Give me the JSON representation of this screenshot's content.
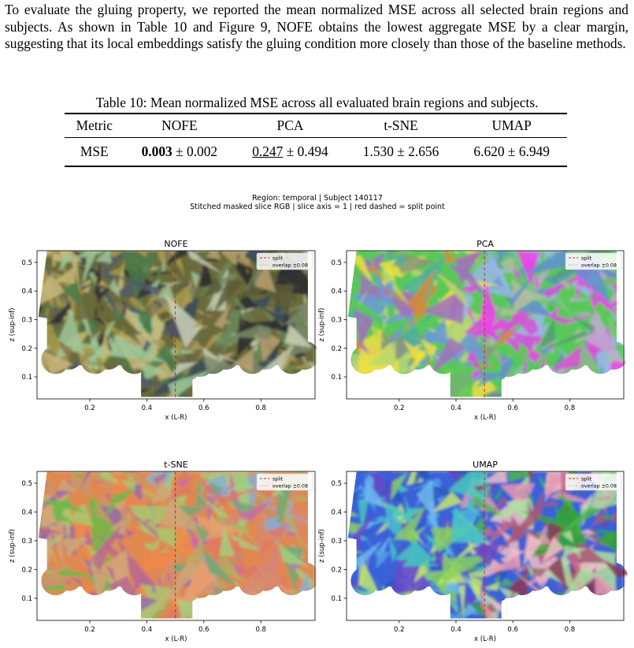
{
  "paragraph": "To evaluate the gluing property, we reported the mean normalized MSE across all selected brain regions and subjects. As shown in Table 10 and Figure 9, NOFE obtains the lowest aggregate MSE by a clear margin, suggesting that its local embeddings satisfy the gluing condition more closely than those of the baseline methods.",
  "table": {
    "caption": "Table 10: Mean normalized MSE across all evaluated brain regions and subjects.",
    "pm": "±",
    "header": [
      "Metric",
      "NOFE",
      "PCA",
      "t-SNE",
      "UMAP"
    ],
    "rows": [
      {
        "metric": "MSE",
        "cells": [
          {
            "mean": "0.003",
            "std": "0.002",
            "emphasis": "bold"
          },
          {
            "mean": "0.247",
            "std": "0.494",
            "emphasis": "underline"
          },
          {
            "mean": "1.530",
            "std": "2.656"
          },
          {
            "mean": "6.620",
            "std": "6.949"
          }
        ]
      }
    ]
  },
  "figure": {
    "suptitle": [
      "Region: temporal  |  Subject 140117",
      "Stitched masked slice RGB  |  slice axis = 1  |  red dashed = split point"
    ],
    "xlabel": "x (L-R)",
    "ylabel": "z (sup-inf)",
    "xlim": [
      0.015,
      0.99
    ],
    "ylim": [
      0.023,
      0.541
    ],
    "xticks": [
      0.2,
      0.4,
      0.6,
      0.8
    ],
    "yticks": [
      0.1,
      0.2,
      0.3,
      0.4,
      0.5
    ],
    "split_x": 0.5,
    "overlap": 0.08,
    "legend": {
      "position": "upper right",
      "entries": [
        "split",
        "overlap ±0.08"
      ]
    },
    "panels": [
      {
        "title": "NOFE"
      },
      {
        "title": "PCA"
      },
      {
        "title": "t-SNE"
      },
      {
        "title": "UMAP"
      }
    ]
  }
}
